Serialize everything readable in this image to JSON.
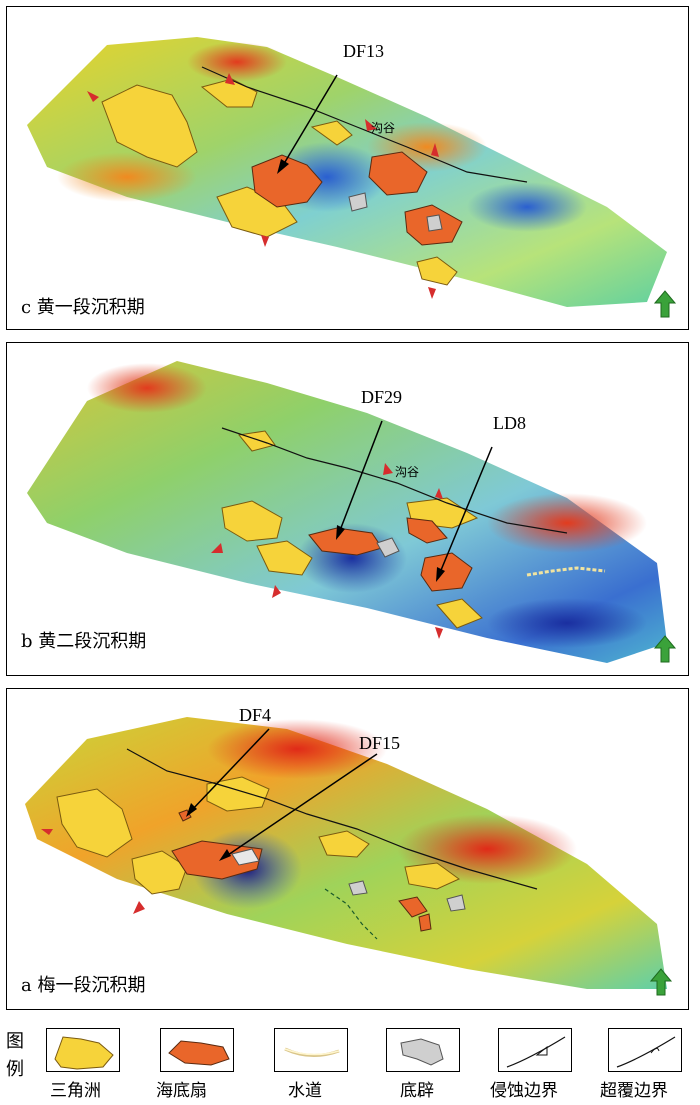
{
  "panels": {
    "c": {
      "caption": "c 黄一段沉积期",
      "labels": {
        "df13": "DF13",
        "gully": "沟谷"
      }
    },
    "b": {
      "caption": "b 黄二段沉积期",
      "labels": {
        "df29": "DF29",
        "ld8": "LD8",
        "gully": "沟谷"
      }
    },
    "a": {
      "caption": "a 梅一段沉积期",
      "labels": {
        "df4": "DF4",
        "df15": "DF15"
      }
    }
  },
  "legend": {
    "title": "图例",
    "items": [
      {
        "label": "三角洲"
      },
      {
        "label": "海底扇"
      },
      {
        "label": "水道"
      },
      {
        "label": "底辟"
      },
      {
        "label": "侵蚀边界"
      },
      {
        "label": "超覆边界"
      }
    ]
  },
  "colors": {
    "delta": "#f6d33a",
    "fan": "#e9662a",
    "diapir": "#cfcfcf",
    "arrow": "#d62d2d",
    "north_arrow": "#3aa23a"
  }
}
